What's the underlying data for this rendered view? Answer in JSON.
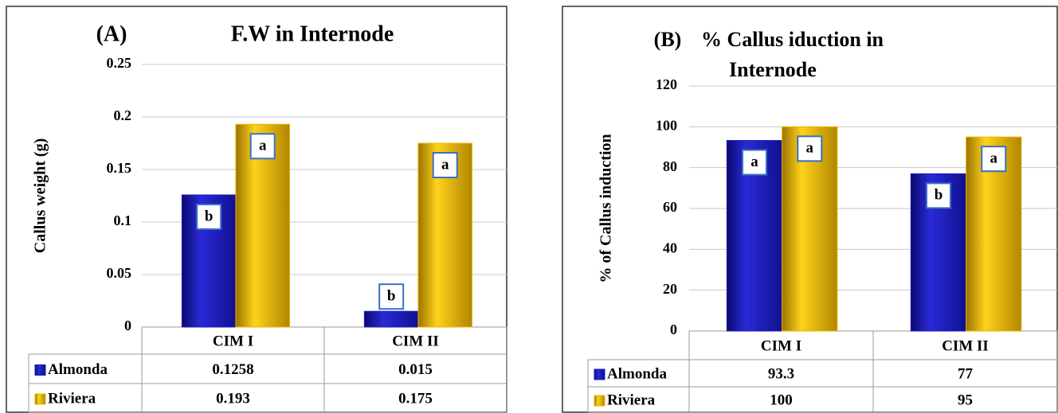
{
  "chart_data": [
    {
      "type": "bar",
      "panel": "(A)",
      "title": [
        "F.W in Internode"
      ],
      "y_label": "Callus weight (g)",
      "categories": [
        "CIM I",
        "CIM II"
      ],
      "series": [
        {
          "name": "Almonda",
          "color": "#1c1cb8",
          "values": [
            0.1258,
            0.015
          ],
          "letters": [
            "b",
            "b"
          ]
        },
        {
          "name": "Riviera",
          "color": "#e8b400",
          "values": [
            0.193,
            0.175
          ],
          "letters": [
            "a",
            "a"
          ]
        }
      ],
      "ylim": [
        0,
        0.25
      ],
      "yticks": [
        0,
        0.05,
        0.1,
        0.15,
        0.2,
        0.25
      ],
      "grid": true
    },
    {
      "type": "bar",
      "panel": "(B)",
      "title": [
        "% Callus iduction in",
        "Internode"
      ],
      "y_label": "% of Callus induction",
      "categories": [
        "CIM I",
        "CIM II"
      ],
      "series": [
        {
          "name": "Almonda",
          "color": "#1c1cb8",
          "values": [
            93.3,
            77
          ],
          "letters": [
            "a",
            "b"
          ]
        },
        {
          "name": "Riviera",
          "color": "#e8b400",
          "values": [
            100,
            95
          ],
          "letters": [
            "a",
            "a"
          ]
        }
      ],
      "ylim": [
        0,
        120
      ],
      "yticks": [
        0,
        20,
        40,
        60,
        80,
        100,
        120
      ],
      "grid": true
    }
  ]
}
